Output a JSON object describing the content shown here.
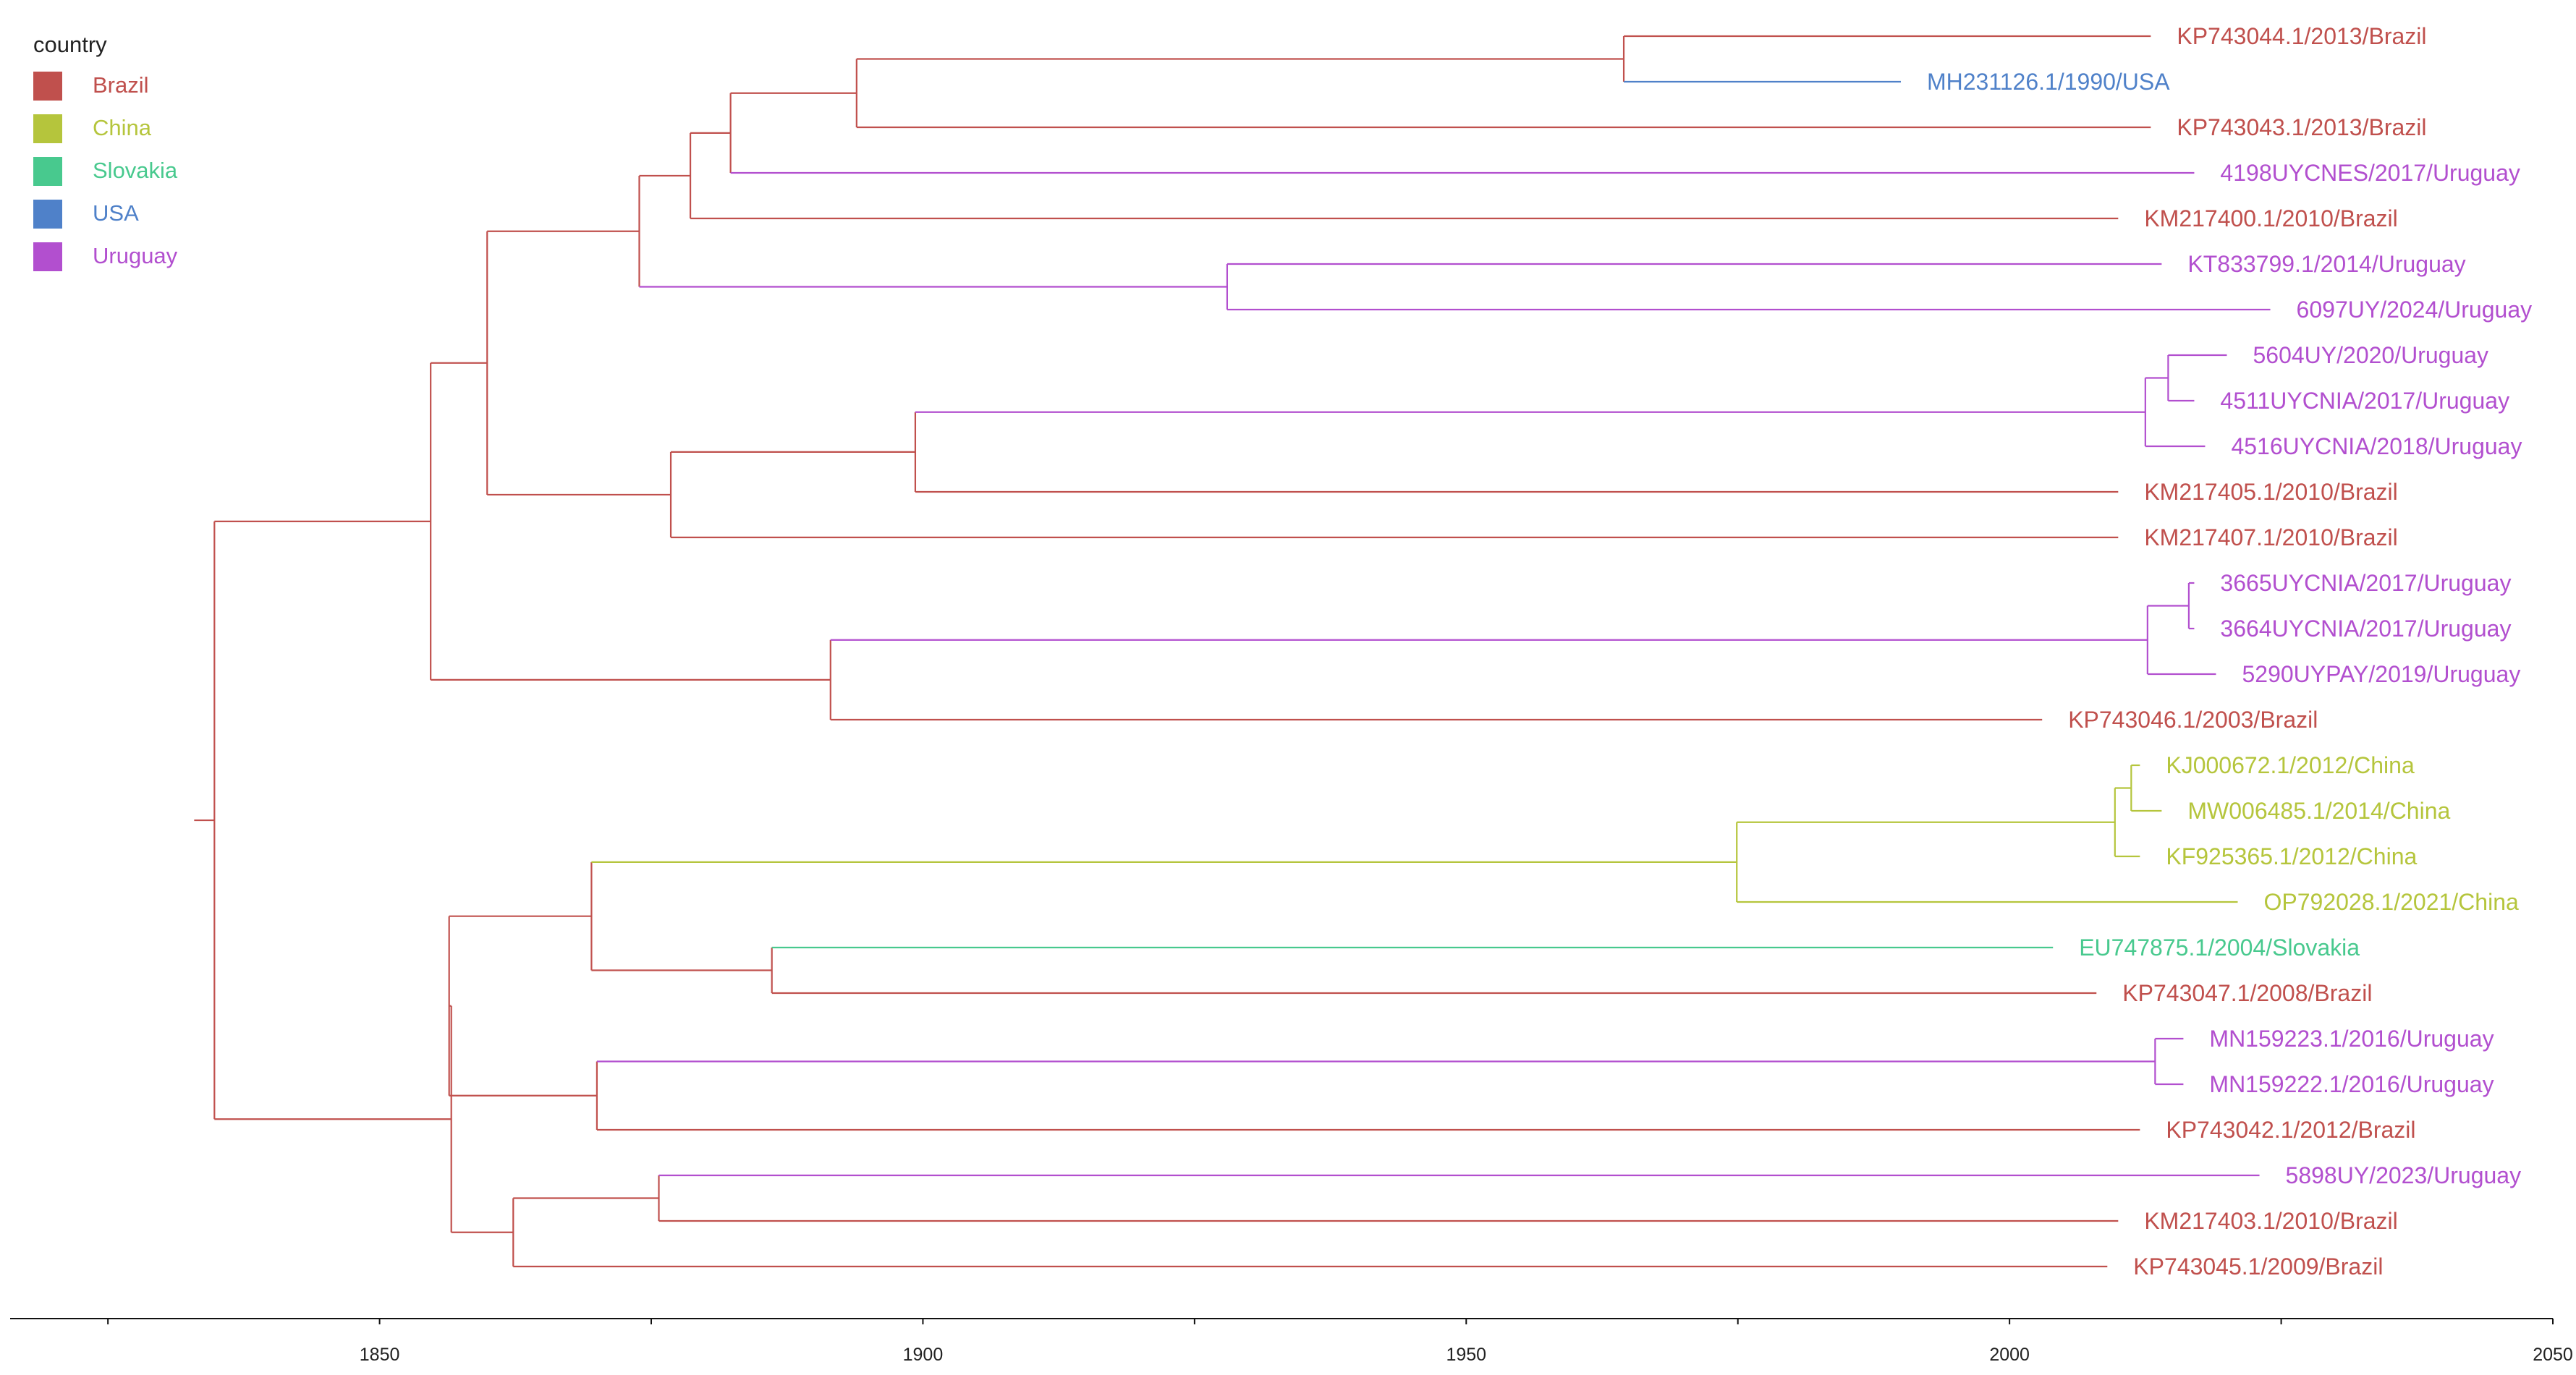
{
  "legend": {
    "title": "country",
    "items": [
      {
        "label": "Brazil",
        "color": "#c0504d"
      },
      {
        "label": "China",
        "color": "#b5c53c"
      },
      {
        "label": "Slovakia",
        "color": "#48c98e"
      },
      {
        "label": "USA",
        "color": "#4f81c9"
      },
      {
        "label": "Uruguay",
        "color": "#b24fcf"
      }
    ]
  },
  "tree": {
    "axis": {
      "min": 1816,
      "max": 2050,
      "ticks": [
        1850,
        1900,
        1950,
        2000,
        2050
      ]
    },
    "root": {
      "t": 1834.8,
      "children": [
        {
          "t": 1854.7,
          "children": [
            {
              "t": 1859.9,
              "children": [
                {
                  "t": 1873.9,
                  "children": [
                    {
                      "t": 1878.6,
                      "children": [
                        {
                          "t": 1882.3,
                          "children": [
                            {
                              "t": 1893.9,
                              "children": [
                                {
                                  "t": 1964.5,
                                  "children": [
                                    {
                                      "label": "KP743044.1/2013/Brazil",
                                      "country": "Brazil",
                                      "t": 2013.0
                                    },
                                    {
                                      "label": "MH231126.1/1990/USA",
                                      "country": "USA",
                                      "t": 1990.0
                                    }
                                  ]
                                },
                                {
                                  "label": "KP743043.1/2013/Brazil",
                                  "country": "Brazil",
                                  "t": 2013.0
                                }
                              ]
                            },
                            {
                              "label": "4198UYCNES/2017/Uruguay",
                              "country": "Uruguay",
                              "t": 2017.0
                            }
                          ]
                        },
                        {
                          "label": "KM217400.1/2010/Brazil",
                          "country": "Brazil",
                          "t": 2010.0
                        }
                      ]
                    },
                    {
                      "t": 1928.0,
                      "children": [
                        {
                          "label": "KT833799.1/2014/Uruguay",
                          "country": "Uruguay",
                          "t": 2014.0
                        },
                        {
                          "label": "6097UY/2024/Uruguay",
                          "country": "Uruguay",
                          "t": 2024.0
                        }
                      ]
                    }
                  ]
                },
                {
                  "t": 1876.8,
                  "children": [
                    {
                      "t": 1899.3,
                      "children": [
                        {
                          "t": 2012.5,
                          "children": [
                            {
                              "t": 2014.6,
                              "children": [
                                {
                                  "label": "5604UY/2020/Uruguay",
                                  "country": "Uruguay",
                                  "t": 2020.0
                                },
                                {
                                  "label": "4511UYCNIA/2017/Uruguay",
                                  "country": "Uruguay",
                                  "t": 2017.0
                                }
                              ]
                            },
                            {
                              "label": "4516UYCNIA/2018/Uruguay",
                              "country": "Uruguay",
                              "t": 2018.0
                            }
                          ]
                        },
                        {
                          "label": "KM217405.1/2010/Brazil",
                          "country": "Brazil",
                          "t": 2010.0
                        }
                      ]
                    },
                    {
                      "label": "KM217407.1/2010/Brazil",
                      "country": "Brazil",
                      "t": 2010.0
                    }
                  ]
                }
              ]
            },
            {
              "t": 1891.5,
              "children": [
                {
                  "t": 2012.7,
                  "children": [
                    {
                      "t": 2016.5,
                      "children": [
                        {
                          "label": "3665UYCNIA/2017/Uruguay",
                          "country": "Uruguay",
                          "t": 2017.0
                        },
                        {
                          "label": "3664UYCNIA/2017/Uruguay",
                          "country": "Uruguay",
                          "t": 2017.0
                        }
                      ]
                    },
                    {
                      "label": "5290UYPAY/2019/Uruguay",
                      "country": "Uruguay",
                      "t": 2019.0
                    }
                  ]
                },
                {
                  "label": "KP743046.1/2003/Brazil",
                  "country": "Brazil",
                  "t": 2003.0
                }
              ]
            }
          ]
        },
        {
          "t": 1856.6,
          "children": [
            {
              "t": 1856.4,
              "children": [
                {
                  "t": 1869.5,
                  "children": [
                    {
                      "t": 1974.9,
                      "children": [
                        {
                          "t": 2009.7,
                          "children": [
                            {
                              "t": 2011.2,
                              "children": [
                                {
                                  "label": "KJ000672.1/2012/China",
                                  "country": "China",
                                  "t": 2012.0
                                },
                                {
                                  "label": "MW006485.1/2014/China",
                                  "country": "China",
                                  "t": 2014.0
                                }
                              ]
                            },
                            {
                              "label": "KF925365.1/2012/China",
                              "country": "China",
                              "t": 2012.0
                            }
                          ]
                        },
                        {
                          "label": "OP792028.1/2021/China",
                          "country": "China",
                          "t": 2021.0
                        }
                      ]
                    },
                    {
                      "t": 1886.1,
                      "children": [
                        {
                          "label": "EU747875.1/2004/Slovakia",
                          "country": "Slovakia",
                          "t": 2004.0
                        },
                        {
                          "label": "KP743047.1/2008/Brazil",
                          "country": "Brazil",
                          "t": 2008.0
                        }
                      ]
                    }
                  ]
                },
                {
                  "t": 1870.0,
                  "children": [
                    {
                      "t": 2013.4,
                      "children": [
                        {
                          "label": "MN159223.1/2016/Uruguay",
                          "country": "Uruguay",
                          "t": 2016.0
                        },
                        {
                          "label": "MN159222.1/2016/Uruguay",
                          "country": "Uruguay",
                          "t": 2016.0
                        }
                      ]
                    },
                    {
                      "label": "KP743042.1/2012/Brazil",
                      "country": "Brazil",
                      "t": 2012.0
                    }
                  ]
                }
              ]
            },
            {
              "t": 1862.3,
              "children": [
                {
                  "t": 1875.7,
                  "children": [
                    {
                      "label": "5898UY/2023/Uruguay",
                      "country": "Uruguay",
                      "t": 2023.0
                    },
                    {
                      "label": "KM217403.1/2010/Brazil",
                      "country": "Brazil",
                      "t": 2010.0
                    }
                  ]
                },
                {
                  "label": "KP743045.1/2009/Brazil",
                  "country": "Brazil",
                  "t": 2009.0
                }
              ]
            }
          ]
        }
      ]
    }
  }
}
